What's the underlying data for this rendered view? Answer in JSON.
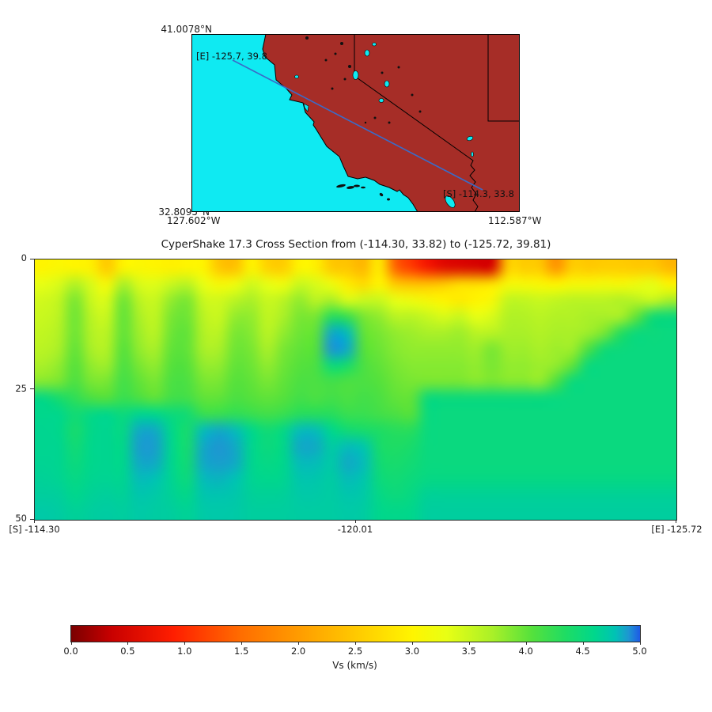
{
  "title": "CyperShake 17.3 Cross Section from (-114.30, 33.82) to (-125.72, 39.81)",
  "map": {
    "lat_top": "41.0078°N",
    "lat_bottom": "32.8095°N",
    "lon_left": "127.602°W",
    "lon_right": "112.587°W",
    "end_label": "[E] -125.7, 39.8",
    "start_label": "[S] -114.3, 33.8",
    "ocean_color": "#0FEAF2",
    "land_color": "#A62D27",
    "line_color": "#3A6BC8",
    "extent": {
      "lon_min": -127.602,
      "lon_max": -112.587,
      "lat_min": 32.8095,
      "lat_max": 41.0078
    },
    "section_line": {
      "lon_e": -125.72,
      "lat_e": 39.81,
      "lon_s": -114.3,
      "lat_s": 33.82
    }
  },
  "chart_data": {
    "type": "heatmap",
    "title": "CyperShake 17.3 Cross Section from (-114.30, 33.82) to (-125.72, 39.81)",
    "xlabel": "",
    "ylabel": "",
    "x_ticks": [
      "[S] -114.30",
      "-120.01",
      "[E] -125.72"
    ],
    "y_ticks": [
      "0",
      "25",
      "50"
    ],
    "depth_km_range": [
      0,
      50
    ],
    "lon_range": [
      -114.3,
      -125.72
    ],
    "value_name": "Vs (km/s)",
    "value_range": [
      0,
      5
    ],
    "grid_cols": 40,
    "grid_rows": 16,
    "grid": [
      [
        3.0,
        3.05,
        3.0,
        2.95,
        2.5,
        3.0,
        3.05,
        3.0,
        2.95,
        3.0,
        3.0,
        2.45,
        2.4,
        3.0,
        2.6,
        2.55,
        3.0,
        2.95,
        2.5,
        2.45,
        2.3,
        2.9,
        1.4,
        1.1,
        0.8,
        0.6,
        0.55,
        0.5,
        0.5,
        2.55,
        2.55,
        2.5,
        1.9,
        2.55,
        2.5,
        2.55,
        2.55,
        2.5,
        2.5,
        2.3
      ],
      [
        3.3,
        3.4,
        3.65,
        3.4,
        3.1,
        3.7,
        3.4,
        3.35,
        3.5,
        3.6,
        3.3,
        3.1,
        3.2,
        3.45,
        3.3,
        3.2,
        3.5,
        3.4,
        3.2,
        2.9,
        2.7,
        3.0,
        2.5,
        2.4,
        2.4,
        2.5,
        2.7,
        2.7,
        2.8,
        3.1,
        3.1,
        3.05,
        3.0,
        3.1,
        3.1,
        3.15,
        3.1,
        3.2,
        3.3,
        3.0
      ],
      [
        3.45,
        3.55,
        3.9,
        3.5,
        3.4,
        3.95,
        3.6,
        3.5,
        3.8,
        3.9,
        3.5,
        3.45,
        3.6,
        3.7,
        3.5,
        3.6,
        3.8,
        3.6,
        3.7,
        3.4,
        3.5,
        3.5,
        3.3,
        3.2,
        3.1,
        3.0,
        2.9,
        3.0,
        3.1,
        3.55,
        3.55,
        3.5,
        3.55,
        3.6,
        3.6,
        3.6,
        3.65,
        3.6,
        3.5,
        3.7
      ],
      [
        3.5,
        3.6,
        3.95,
        3.6,
        3.5,
        4.0,
        3.7,
        3.55,
        3.9,
        3.95,
        3.6,
        3.5,
        3.8,
        3.8,
        3.55,
        3.7,
        3.9,
        3.9,
        4.3,
        4.2,
        3.9,
        3.8,
        3.6,
        3.6,
        3.5,
        3.4,
        3.5,
        3.3,
        3.4,
        3.65,
        3.65,
        3.6,
        3.65,
        3.65,
        3.7,
        3.7,
        3.7,
        4.0,
        4.45,
        4.5
      ],
      [
        3.55,
        3.65,
        3.95,
        3.65,
        3.6,
        4.0,
        3.75,
        3.6,
        3.95,
        4.0,
        3.65,
        3.6,
        3.9,
        3.85,
        3.6,
        3.8,
        3.95,
        4.0,
        4.85,
        4.8,
        4.0,
        3.9,
        3.8,
        3.75,
        3.7,
        3.7,
        3.75,
        3.6,
        3.6,
        3.7,
        3.7,
        3.65,
        3.7,
        3.7,
        3.75,
        3.9,
        4.3,
        4.5,
        4.5,
        4.52
      ],
      [
        3.6,
        3.7,
        4.0,
        3.7,
        3.65,
        4.05,
        3.8,
        3.7,
        4.0,
        4.0,
        3.7,
        3.7,
        3.95,
        3.9,
        3.7,
        3.9,
        4.0,
        4.05,
        4.9,
        4.85,
        4.05,
        3.95,
        3.85,
        3.8,
        3.8,
        3.8,
        3.8,
        3.75,
        3.9,
        3.75,
        3.75,
        3.7,
        3.75,
        3.75,
        4.1,
        4.45,
        4.5,
        4.52,
        4.52,
        4.52
      ],
      [
        3.7,
        3.8,
        4.05,
        3.8,
        3.75,
        4.1,
        3.9,
        3.8,
        4.05,
        4.05,
        3.8,
        3.8,
        4.0,
        3.95,
        3.8,
        3.95,
        4.05,
        4.1,
        4.5,
        4.4,
        4.1,
        4.0,
        3.9,
        3.85,
        3.85,
        3.85,
        3.85,
        3.8,
        3.9,
        3.8,
        3.8,
        3.75,
        3.8,
        4.0,
        4.5,
        4.52,
        4.52,
        4.52,
        4.52,
        4.52
      ],
      [
        3.85,
        3.9,
        4.1,
        3.9,
        3.9,
        4.15,
        4.0,
        3.9,
        4.1,
        4.1,
        3.9,
        3.9,
        4.05,
        4.0,
        3.9,
        4.0,
        4.1,
        4.1,
        4.15,
        4.1,
        4.1,
        4.05,
        3.95,
        3.9,
        3.9,
        3.9,
        3.9,
        3.85,
        3.9,
        3.85,
        3.85,
        3.8,
        4.1,
        4.5,
        4.52,
        4.52,
        4.52,
        4.52,
        4.52,
        4.52
      ],
      [
        4.55,
        4.4,
        4.25,
        4.1,
        4.05,
        4.2,
        4.1,
        4.0,
        4.15,
        4.15,
        4.0,
        4.0,
        4.1,
        4.05,
        4.0,
        4.05,
        4.15,
        4.1,
        4.15,
        4.1,
        4.15,
        4.1,
        4.0,
        4.0,
        4.5,
        4.5,
        4.5,
        4.5,
        4.5,
        4.5,
        4.5,
        4.5,
        4.52,
        4.52,
        4.52,
        4.52,
        4.52,
        4.52,
        4.52,
        4.52
      ],
      [
        4.6,
        4.6,
        4.45,
        4.55,
        4.6,
        4.5,
        4.62,
        4.6,
        4.5,
        4.45,
        4.2,
        4.2,
        4.25,
        4.2,
        4.15,
        4.2,
        4.3,
        4.3,
        4.3,
        4.2,
        4.2,
        4.15,
        4.1,
        4.05,
        4.52,
        4.52,
        4.52,
        4.52,
        4.52,
        4.52,
        4.52,
        4.52,
        4.52,
        4.52,
        4.52,
        4.52,
        4.52,
        4.52,
        4.52,
        4.52
      ],
      [
        4.62,
        4.6,
        4.4,
        4.58,
        4.62,
        4.55,
        4.85,
        4.85,
        4.6,
        4.4,
        4.8,
        4.85,
        4.8,
        4.6,
        4.45,
        4.55,
        4.8,
        4.8,
        4.6,
        4.45,
        4.4,
        4.35,
        4.3,
        4.3,
        4.52,
        4.52,
        4.52,
        4.52,
        4.52,
        4.52,
        4.52,
        4.52,
        4.52,
        4.52,
        4.52,
        4.52,
        4.52,
        4.52,
        4.52,
        4.52
      ],
      [
        4.62,
        4.62,
        4.45,
        4.6,
        4.62,
        4.58,
        4.88,
        4.88,
        4.62,
        4.42,
        4.85,
        4.9,
        4.85,
        4.62,
        4.5,
        4.58,
        4.85,
        4.85,
        4.7,
        4.8,
        4.75,
        4.4,
        4.35,
        4.4,
        4.52,
        4.52,
        4.52,
        4.52,
        4.52,
        4.52,
        4.52,
        4.52,
        4.52,
        4.52,
        4.52,
        4.52,
        4.52,
        4.52,
        4.52,
        4.52
      ],
      [
        4.63,
        4.62,
        4.5,
        4.6,
        4.62,
        4.6,
        4.85,
        4.85,
        4.62,
        4.45,
        4.85,
        4.88,
        4.85,
        4.62,
        4.55,
        4.6,
        4.8,
        4.8,
        4.72,
        4.85,
        4.8,
        4.45,
        4.4,
        4.45,
        4.52,
        4.52,
        4.52,
        4.52,
        4.52,
        4.52,
        4.52,
        4.52,
        4.52,
        4.52,
        4.52,
        4.52,
        4.52,
        4.52,
        4.52,
        4.52
      ],
      [
        4.65,
        4.63,
        4.55,
        4.62,
        4.63,
        4.62,
        4.8,
        4.78,
        4.63,
        4.5,
        4.8,
        4.82,
        4.78,
        4.63,
        4.6,
        4.62,
        4.75,
        4.75,
        4.7,
        4.8,
        4.75,
        4.5,
        4.45,
        4.5,
        4.55,
        4.55,
        4.55,
        4.55,
        4.55,
        4.55,
        4.55,
        4.55,
        4.55,
        4.55,
        4.55,
        4.55,
        4.55,
        4.55,
        4.55,
        4.55
      ],
      [
        4.68,
        4.67,
        4.6,
        4.65,
        4.67,
        4.65,
        4.75,
        4.72,
        4.65,
        4.58,
        4.75,
        4.76,
        4.74,
        4.66,
        4.65,
        4.66,
        4.72,
        4.72,
        4.7,
        4.75,
        4.72,
        4.56,
        4.5,
        4.55,
        4.65,
        4.65,
        4.65,
        4.65,
        4.65,
        4.65,
        4.65,
        4.65,
        4.65,
        4.65,
        4.65,
        4.65,
        4.65,
        4.65,
        4.65,
        4.65
      ],
      [
        4.72,
        4.7,
        4.65,
        4.68,
        4.7,
        4.68,
        4.72,
        4.7,
        4.68,
        4.64,
        4.72,
        4.73,
        4.72,
        4.68,
        4.68,
        4.68,
        4.7,
        4.7,
        4.7,
        4.72,
        4.7,
        4.6,
        4.58,
        4.6,
        4.68,
        4.68,
        4.68,
        4.68,
        4.68,
        4.68,
        4.68,
        4.68,
        4.68,
        4.68,
        4.68,
        4.68,
        4.68,
        4.68,
        4.68,
        4.68
      ]
    ],
    "colormap_stops": [
      [
        0.0,
        "#7A0000"
      ],
      [
        0.35,
        "#C80000"
      ],
      [
        0.9,
        "#FF1E00"
      ],
      [
        1.5,
        "#FF6E00"
      ],
      [
        2.1,
        "#FFA500"
      ],
      [
        2.6,
        "#FFD200"
      ],
      [
        3.0,
        "#FFF500"
      ],
      [
        3.3,
        "#E8FF14"
      ],
      [
        3.7,
        "#AAF028"
      ],
      [
        4.05,
        "#55E13C"
      ],
      [
        4.35,
        "#1EDC64"
      ],
      [
        4.6,
        "#00D78C"
      ],
      [
        4.78,
        "#00C3B4"
      ],
      [
        4.9,
        "#1E96D2"
      ],
      [
        5.0,
        "#1E5AE6"
      ]
    ],
    "colorbar": {
      "ticks": [
        "0.0",
        "0.5",
        "1.0",
        "1.5",
        "2.0",
        "2.5",
        "3.0",
        "3.5",
        "4.0",
        "4.5",
        "5.0"
      ],
      "label": "Vs (km/s)"
    }
  }
}
